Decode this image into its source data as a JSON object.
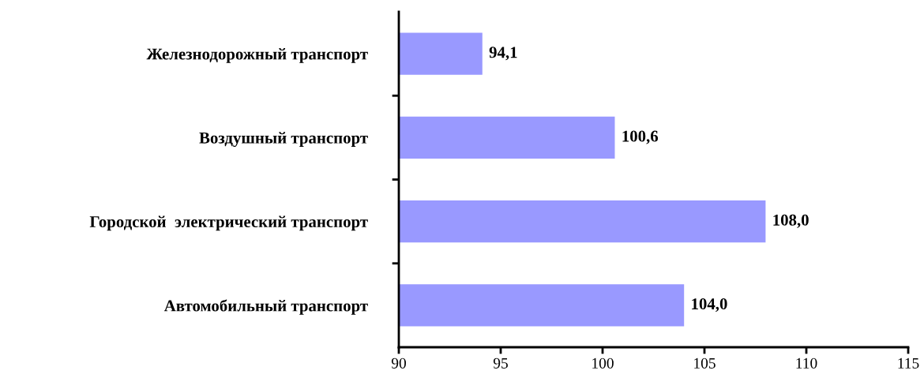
{
  "chart_data": {
    "type": "bar",
    "orientation": "horizontal",
    "categories": [
      "Железнодорожный транспорт",
      "Воздушный транспорт",
      "Городской  электрический транспорт",
      "Автомобильный транспорт"
    ],
    "values": [
      94.1,
      100.6,
      108.0,
      104.0
    ],
    "value_labels": [
      "94,1",
      "100,6",
      "108,0",
      "104,0"
    ],
    "color": "#9999ff",
    "xlim": [
      90,
      115
    ],
    "xticks": [
      90,
      95,
      100,
      105,
      110,
      115
    ],
    "grid": false,
    "legend": false
  }
}
